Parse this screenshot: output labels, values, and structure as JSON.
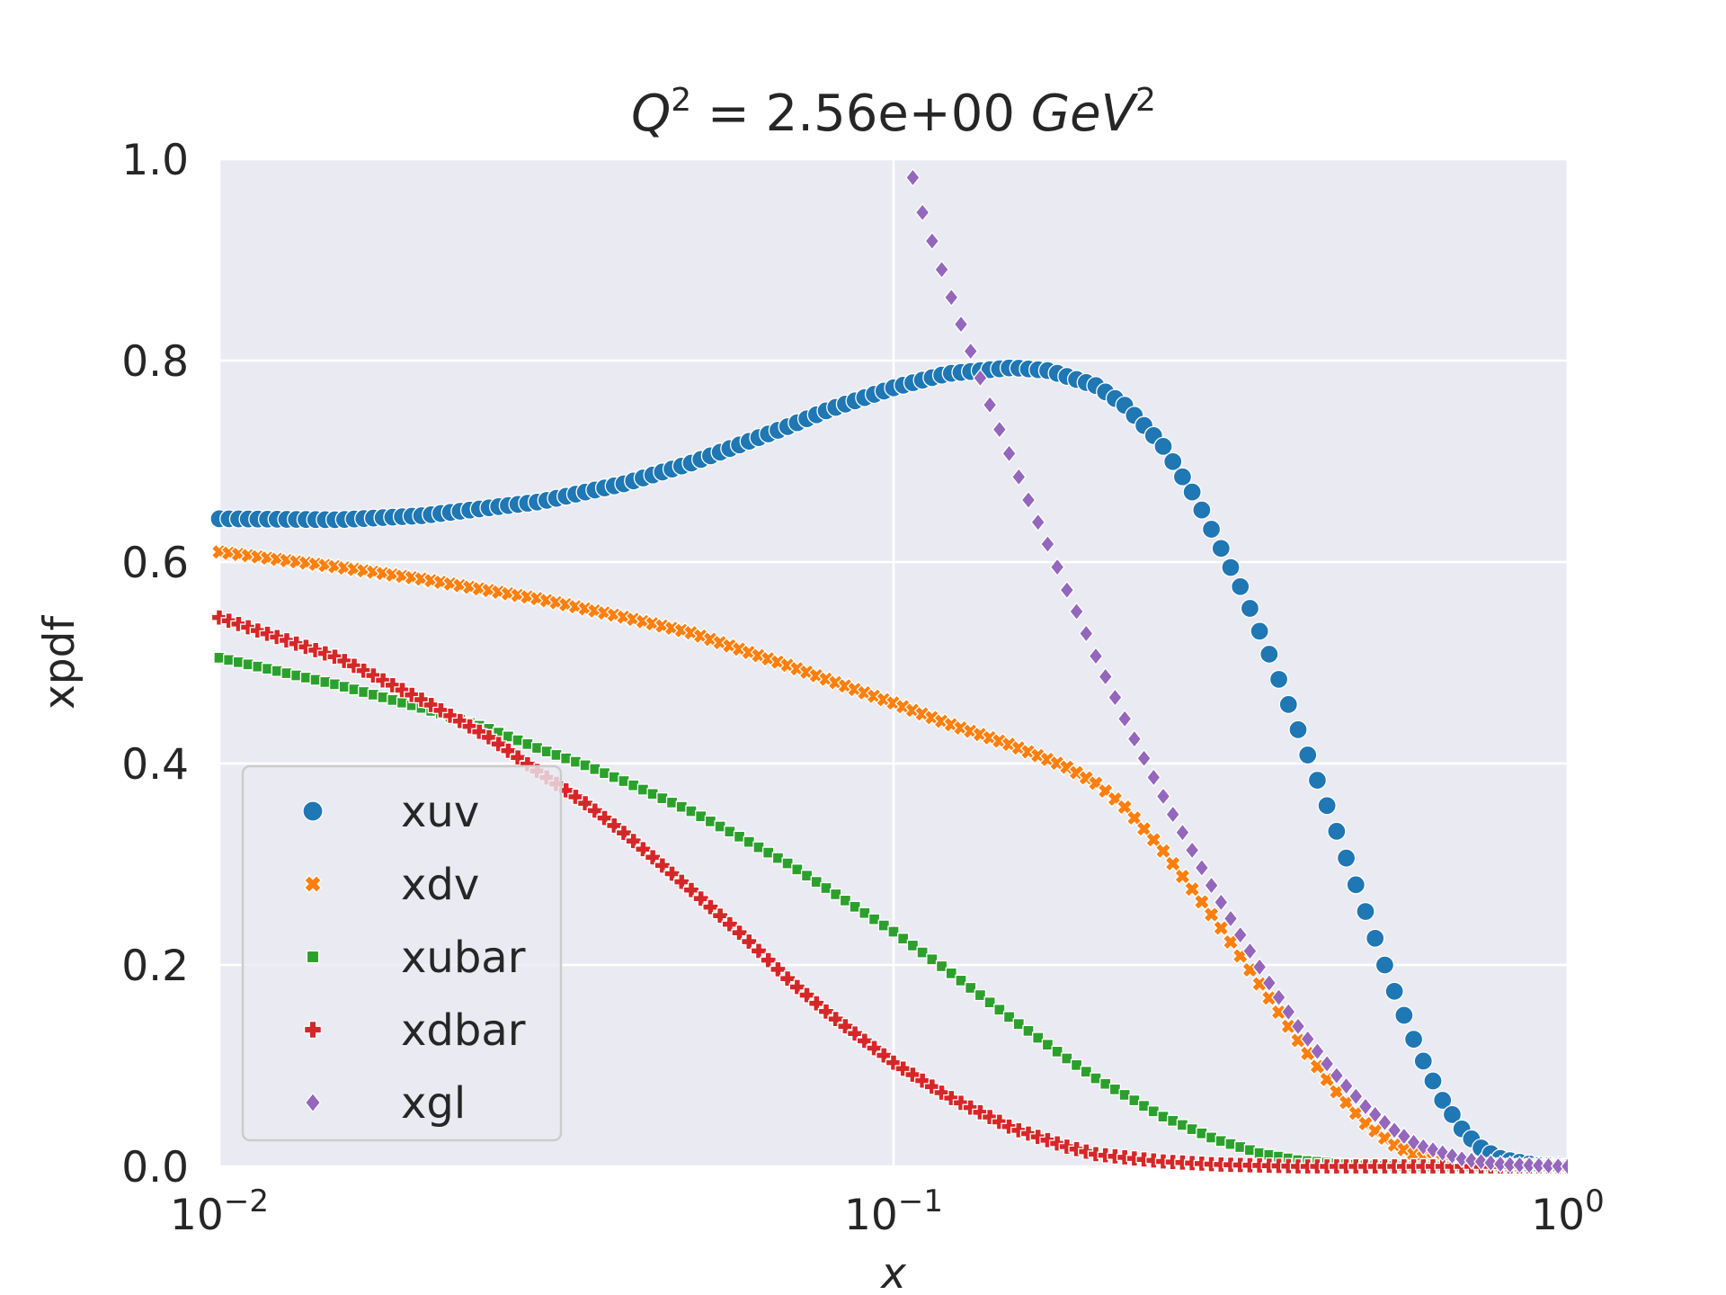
{
  "chart_data": {
    "type": "scatter",
    "title": "Q² = 2.56e+00 GeV²",
    "title_parts": {
      "q": "Q",
      "exp": "2",
      "value": " = 2.56e+00 ",
      "unit": "GeV",
      "unit_exp": "2"
    },
    "xlabel": "x",
    "ylabel": "xpdf",
    "xscale": "log",
    "xlim": [
      0.01,
      1
    ],
    "ylim": [
      0,
      1
    ],
    "xticks": [
      {
        "value": 0.01,
        "base": "10",
        "exp": "−2"
      },
      {
        "value": 0.1,
        "base": "10",
        "exp": "−1"
      },
      {
        "value": 1,
        "base": "10",
        "exp": "0"
      }
    ],
    "yticks": [
      {
        "value": 0.0,
        "label": "0.0"
      },
      {
        "value": 0.2,
        "label": "0.2"
      },
      {
        "value": 0.4,
        "label": "0.4"
      },
      {
        "value": 0.6,
        "label": "0.6"
      },
      {
        "value": 0.8,
        "label": "0.8"
      },
      {
        "value": 1.0,
        "label": "1.0"
      }
    ],
    "grid": true,
    "legend_position": "lower-left",
    "plot_background": "#eaeaf2",
    "series": [
      {
        "name": "xuv",
        "marker": "circle",
        "color": "#1f77b4",
        "points": [
          [
            0.01,
            0.643
          ],
          [
            0.015,
            0.642
          ],
          [
            0.02,
            0.646
          ],
          [
            0.03,
            0.66
          ],
          [
            0.04,
            0.678
          ],
          [
            0.05,
            0.698
          ],
          [
            0.06,
            0.718
          ],
          [
            0.07,
            0.735
          ],
          [
            0.08,
            0.751
          ],
          [
            0.1,
            0.773
          ],
          [
            0.12,
            0.787
          ],
          [
            0.15,
            0.793
          ],
          [
            0.17,
            0.79
          ],
          [
            0.2,
            0.775
          ],
          [
            0.22,
            0.756
          ],
          [
            0.25,
            0.717
          ],
          [
            0.28,
            0.665
          ],
          [
            0.3,
            0.625
          ],
          [
            0.33,
            0.57
          ],
          [
            0.36,
            0.51
          ],
          [
            0.4,
            0.43
          ],
          [
            0.45,
            0.34
          ],
          [
            0.5,
            0.255
          ],
          [
            0.55,
            0.178
          ],
          [
            0.6,
            0.115
          ],
          [
            0.65,
            0.067
          ],
          [
            0.7,
            0.035
          ],
          [
            0.75,
            0.016
          ],
          [
            0.8,
            0.007
          ],
          [
            0.9,
            0.001
          ],
          [
            1.0,
            0.0
          ]
        ]
      },
      {
        "name": "xdv",
        "marker": "x",
        "color": "#ff7f0e",
        "points": [
          [
            0.01,
            0.61
          ],
          [
            0.015,
            0.595
          ],
          [
            0.02,
            0.583
          ],
          [
            0.03,
            0.563
          ],
          [
            0.04,
            0.545
          ],
          [
            0.05,
            0.53
          ],
          [
            0.06,
            0.512
          ],
          [
            0.07,
            0.497
          ],
          [
            0.08,
            0.483
          ],
          [
            0.1,
            0.46
          ],
          [
            0.12,
            0.44
          ],
          [
            0.15,
            0.418
          ],
          [
            0.18,
            0.397
          ],
          [
            0.2,
            0.38
          ],
          [
            0.22,
            0.357
          ],
          [
            0.25,
            0.315
          ],
          [
            0.3,
            0.245
          ],
          [
            0.35,
            0.18
          ],
          [
            0.4,
            0.123
          ],
          [
            0.45,
            0.077
          ],
          [
            0.5,
            0.043
          ],
          [
            0.55,
            0.022
          ],
          [
            0.6,
            0.01
          ],
          [
            0.7,
            0.003
          ],
          [
            0.8,
            0.001
          ],
          [
            1.0,
            0.0
          ]
        ]
      },
      {
        "name": "xubar",
        "marker": "square",
        "color": "#2ca02c",
        "points": [
          [
            0.01,
            0.505
          ],
          [
            0.015,
            0.478
          ],
          [
            0.02,
            0.455
          ],
          [
            0.025,
            0.435
          ],
          [
            0.03,
            0.414
          ],
          [
            0.035,
            0.398
          ],
          [
            0.04,
            0.382
          ],
          [
            0.05,
            0.353
          ],
          [
            0.06,
            0.325
          ],
          [
            0.07,
            0.3
          ],
          [
            0.08,
            0.275
          ],
          [
            0.1,
            0.233
          ],
          [
            0.12,
            0.195
          ],
          [
            0.15,
            0.146
          ],
          [
            0.18,
            0.108
          ],
          [
            0.2,
            0.087
          ],
          [
            0.25,
            0.05
          ],
          [
            0.3,
            0.027
          ],
          [
            0.35,
            0.013
          ],
          [
            0.4,
            0.006
          ],
          [
            0.5,
            0.001
          ],
          [
            0.6,
            0.0
          ],
          [
            1.0,
            0.0
          ]
        ]
      },
      {
        "name": "xdbar",
        "marker": "plus",
        "color": "#d62728",
        "points": [
          [
            0.01,
            0.545
          ],
          [
            0.015,
            0.505
          ],
          [
            0.02,
            0.463
          ],
          [
            0.025,
            0.427
          ],
          [
            0.03,
            0.39
          ],
          [
            0.035,
            0.36
          ],
          [
            0.04,
            0.33
          ],
          [
            0.05,
            0.275
          ],
          [
            0.06,
            0.228
          ],
          [
            0.07,
            0.185
          ],
          [
            0.08,
            0.152
          ],
          [
            0.1,
            0.103
          ],
          [
            0.12,
            0.07
          ],
          [
            0.15,
            0.038
          ],
          [
            0.18,
            0.02
          ],
          [
            0.2,
            0.012
          ],
          [
            0.25,
            0.005
          ],
          [
            0.3,
            0.002
          ],
          [
            0.4,
            0.0
          ],
          [
            1.0,
            0.0
          ]
        ]
      },
      {
        "name": "xgl",
        "marker": "diamond",
        "color": "#9467bd",
        "points": [
          [
            0.105,
            1.0
          ],
          [
            0.11,
            0.95
          ],
          [
            0.12,
            0.875
          ],
          [
            0.13,
            0.81
          ],
          [
            0.14,
            0.75
          ],
          [
            0.15,
            0.7
          ],
          [
            0.16,
            0.655
          ],
          [
            0.17,
            0.615
          ],
          [
            0.18,
            0.575
          ],
          [
            0.19,
            0.54
          ],
          [
            0.2,
            0.505
          ],
          [
            0.21,
            0.475
          ],
          [
            0.22,
            0.445
          ],
          [
            0.23,
            0.418
          ],
          [
            0.25,
            0.37
          ],
          [
            0.27,
            0.328
          ],
          [
            0.3,
            0.272
          ],
          [
            0.33,
            0.225
          ],
          [
            0.36,
            0.183
          ],
          [
            0.4,
            0.137
          ],
          [
            0.45,
            0.093
          ],
          [
            0.5,
            0.06
          ],
          [
            0.55,
            0.037
          ],
          [
            0.6,
            0.021
          ],
          [
            0.7,
            0.007
          ],
          [
            0.8,
            0.002
          ],
          [
            1.0,
            0.0
          ]
        ]
      }
    ]
  }
}
